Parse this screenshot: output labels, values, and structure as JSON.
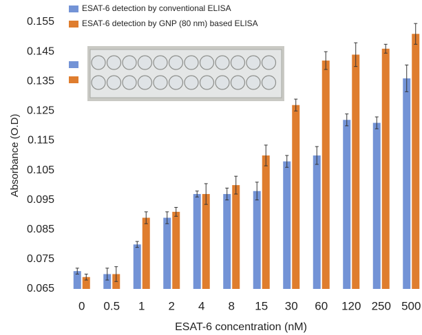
{
  "chart_data": {
    "type": "bar",
    "x_label": "ESAT-6 concentration (nM)",
    "y_label": "Absorbance (O.D)",
    "categories": [
      "0",
      "0.5",
      "1",
      "2",
      "4",
      "8",
      "15",
      "30",
      "60",
      "120",
      "250",
      "500"
    ],
    "series": [
      {
        "name": "ESAT-6 detection by conventional ELISA",
        "color": "#7393d6",
        "values": [
          0.071,
          0.07,
          0.08,
          0.089,
          0.097,
          0.097,
          0.098,
          0.108,
          0.11,
          0.122,
          0.121,
          0.136
        ],
        "errors": [
          0.001,
          0.002,
          0.001,
          0.002,
          0.001,
          0.002,
          0.003,
          0.002,
          0.003,
          0.002,
          0.002,
          0.0045
        ]
      },
      {
        "name": "ESAT-6 detection by GNP (80 nm) based ELISA",
        "color": "#df7d2e",
        "values": [
          0.069,
          0.07,
          0.089,
          0.091,
          0.097,
          0.1,
          0.11,
          0.127,
          0.142,
          0.144,
          0.146,
          0.151
        ],
        "errors": [
          0.001,
          0.0025,
          0.002,
          0.0015,
          0.0035,
          0.003,
          0.0035,
          0.002,
          0.003,
          0.004,
          0.0015,
          0.0035
        ]
      }
    ],
    "ylim": [
      0.065,
      0.155
    ],
    "yticks": [
      0.065,
      0.075,
      0.085,
      0.095,
      0.105,
      0.115,
      0.125,
      0.135,
      0.145,
      0.155
    ],
    "grid": false
  }
}
